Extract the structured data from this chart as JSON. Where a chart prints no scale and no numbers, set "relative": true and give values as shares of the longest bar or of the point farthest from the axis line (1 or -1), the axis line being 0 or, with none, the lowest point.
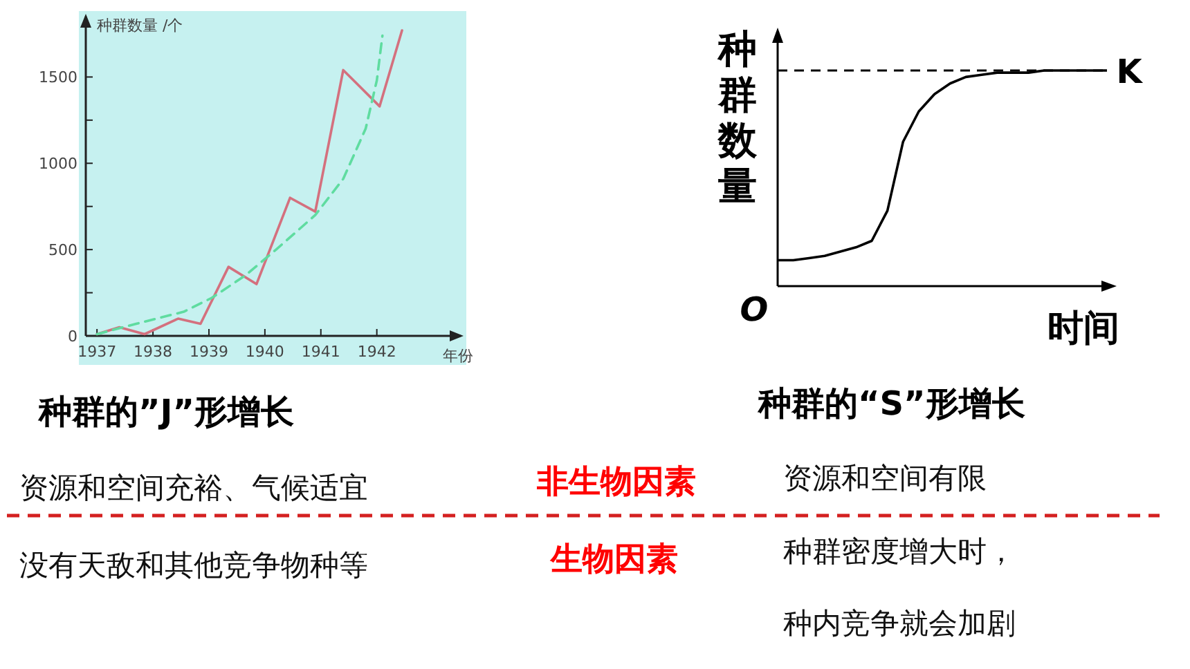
{
  "chart_data": [
    {
      "type": "line",
      "title": "种群的”J”形增长",
      "xlabel": "年份",
      "ylabel": "种群数量 /个",
      "grid": false,
      "xlim": [
        1936.8,
        1943.5
      ],
      "xticks": [
        1937,
        1938,
        1939,
        1940,
        1941,
        1942
      ],
      "ylim": [
        0,
        1850
      ],
      "yticks": [
        0,
        {
          "value": 250,
          "label": null
        },
        500,
        {
          "value": 750,
          "label": null
        },
        1000,
        {
          "value": 1250,
          "label": null
        },
        1500
      ],
      "series": [
        {
          "color": "#d4707e",
          "line_style": "solid",
          "x": [
            1937.0,
            1937.4,
            1937.85,
            1938.45,
            1938.85,
            1939.35,
            1939.85,
            1940.45,
            1940.9,
            1941.4,
            1942.05,
            1942.45
          ],
          "values": [
            10,
            50,
            10,
            100,
            70,
            400,
            300,
            800,
            720,
            1540,
            1330,
            1770
          ]
        },
        {
          "color": "#5fdca0",
          "line_style": "dashed",
          "x": [
            1937.0,
            1937.7,
            1938.55,
            1939.05,
            1939.65,
            1940.2,
            1940.9,
            1941.4,
            1941.8,
            1942.0,
            1942.1
          ],
          "values": [
            10,
            70,
            140,
            220,
            350,
            500,
            700,
            910,
            1200,
            1480,
            1740
          ]
        }
      ]
    },
    {
      "type": "line",
      "relative": true,
      "title": "种群的“S”形增长",
      "xlabel": "时间",
      "ylabel": "种群数量",
      "annotations": [
        "O"
      ],
      "ref_lines": [
        {
          "axis": "y",
          "value": 1,
          "label": "K",
          "line_style": "dashed",
          "color": "#000000"
        }
      ],
      "categories": [
        null,
        null,
        null,
        null,
        null,
        null,
        null,
        null,
        null,
        null,
        null,
        null,
        null,
        null,
        null,
        null,
        null,
        null,
        null,
        null,
        null,
        null
      ],
      "series": [
        {
          "color": "#000000",
          "values": [
            0.12,
            0.12,
            0.13,
            0.14,
            0.16,
            0.18,
            0.21,
            0.35,
            0.67,
            0.81,
            0.89,
            0.94,
            0.97,
            0.98,
            0.99,
            0.99,
            0.99,
            1,
            1,
            1,
            1,
            1
          ]
        }
      ]
    },
    {
      "type": "other",
      "annotations": [
        "资源和空间充裕、气候适宜",
        "非生物因素",
        "资源和空间有限",
        "没有天敌和其他竞争物种等",
        "生物因素",
        "种群密度增大时，",
        "种内竞争就会加剧"
      ]
    }
  ]
}
